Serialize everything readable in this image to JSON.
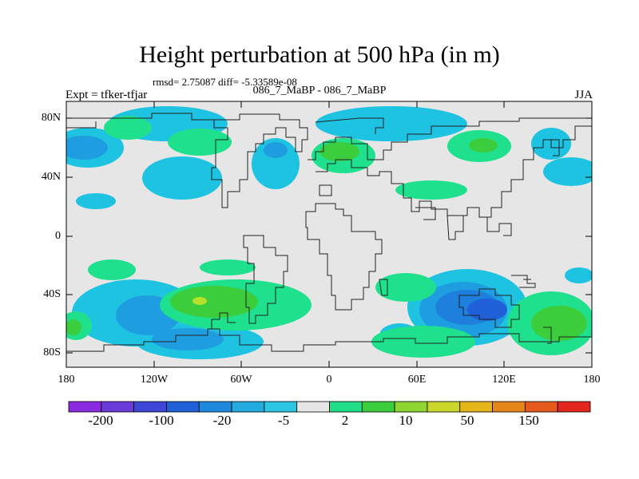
{
  "title": "Height perturbation at 500 hPa (in m)",
  "stats_text": "rmsd= 2.75087 diff= -5.33589e-08",
  "left_string": "Expt = tfker-tfjar",
  "center_string": "086_7_MaBP - 086_7_MaBP",
  "right_string": "JJA",
  "lat_ticks": [
    "80N",
    "40N",
    "0",
    "40S",
    "80S"
  ],
  "lon_ticks": [
    "180",
    "120W",
    "60W",
    "0",
    "60E",
    "120E",
    "180"
  ],
  "colorbar": {
    "colors": [
      "#8a2be2",
      "#6a3bd8",
      "#3f45d4",
      "#1f5fd8",
      "#1e88dc",
      "#23aadf",
      "#2cc6e2",
      "#e6e6e6",
      "#22dd88",
      "#3ccd3c",
      "#8fd632",
      "#c9d72a",
      "#e5b61a",
      "#e6861a",
      "#e65a1e",
      "#e3261e"
    ],
    "labels": [
      "-200",
      "-100",
      "-20",
      "-5",
      "2",
      "10",
      "50",
      "150"
    ]
  },
  "field_colors": {
    "background": "#e6e6e6",
    "light_blue": "#1fc3e2",
    "blue": "#1e9ee0",
    "mid_blue": "#1e7fdc",
    "deep_blue": "#1f5fd8",
    "light_green": "#1fe08c",
    "green": "#3ccd3c",
    "yellow_green": "#b7e02a"
  }
}
